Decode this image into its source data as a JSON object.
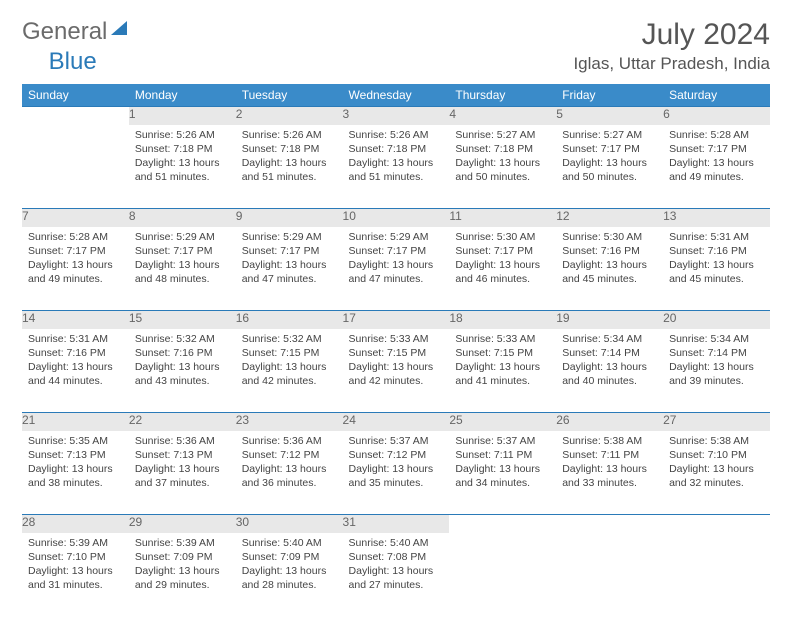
{
  "brand": {
    "part1": "General",
    "part2": "Blue"
  },
  "title": "July 2024",
  "location": "Iglas, Uttar Pradesh, India",
  "colors": {
    "header_bg": "#3a8bc9",
    "header_text": "#ffffff",
    "daynum_bg": "#e8e8e8",
    "row_border": "#2a7ab8",
    "body_text": "#444444"
  },
  "weekdays": [
    "Sunday",
    "Monday",
    "Tuesday",
    "Wednesday",
    "Thursday",
    "Friday",
    "Saturday"
  ],
  "weeks": [
    [
      null,
      {
        "n": "1",
        "sr": "5:26 AM",
        "ss": "7:18 PM",
        "dl": "13 hours and 51 minutes."
      },
      {
        "n": "2",
        "sr": "5:26 AM",
        "ss": "7:18 PM",
        "dl": "13 hours and 51 minutes."
      },
      {
        "n": "3",
        "sr": "5:26 AM",
        "ss": "7:18 PM",
        "dl": "13 hours and 51 minutes."
      },
      {
        "n": "4",
        "sr": "5:27 AM",
        "ss": "7:18 PM",
        "dl": "13 hours and 50 minutes."
      },
      {
        "n": "5",
        "sr": "5:27 AM",
        "ss": "7:17 PM",
        "dl": "13 hours and 50 minutes."
      },
      {
        "n": "6",
        "sr": "5:28 AM",
        "ss": "7:17 PM",
        "dl": "13 hours and 49 minutes."
      }
    ],
    [
      {
        "n": "7",
        "sr": "5:28 AM",
        "ss": "7:17 PM",
        "dl": "13 hours and 49 minutes."
      },
      {
        "n": "8",
        "sr": "5:29 AM",
        "ss": "7:17 PM",
        "dl": "13 hours and 48 minutes."
      },
      {
        "n": "9",
        "sr": "5:29 AM",
        "ss": "7:17 PM",
        "dl": "13 hours and 47 minutes."
      },
      {
        "n": "10",
        "sr": "5:29 AM",
        "ss": "7:17 PM",
        "dl": "13 hours and 47 minutes."
      },
      {
        "n": "11",
        "sr": "5:30 AM",
        "ss": "7:17 PM",
        "dl": "13 hours and 46 minutes."
      },
      {
        "n": "12",
        "sr": "5:30 AM",
        "ss": "7:16 PM",
        "dl": "13 hours and 45 minutes."
      },
      {
        "n": "13",
        "sr": "5:31 AM",
        "ss": "7:16 PM",
        "dl": "13 hours and 45 minutes."
      }
    ],
    [
      {
        "n": "14",
        "sr": "5:31 AM",
        "ss": "7:16 PM",
        "dl": "13 hours and 44 minutes."
      },
      {
        "n": "15",
        "sr": "5:32 AM",
        "ss": "7:16 PM",
        "dl": "13 hours and 43 minutes."
      },
      {
        "n": "16",
        "sr": "5:32 AM",
        "ss": "7:15 PM",
        "dl": "13 hours and 42 minutes."
      },
      {
        "n": "17",
        "sr": "5:33 AM",
        "ss": "7:15 PM",
        "dl": "13 hours and 42 minutes."
      },
      {
        "n": "18",
        "sr": "5:33 AM",
        "ss": "7:15 PM",
        "dl": "13 hours and 41 minutes."
      },
      {
        "n": "19",
        "sr": "5:34 AM",
        "ss": "7:14 PM",
        "dl": "13 hours and 40 minutes."
      },
      {
        "n": "20",
        "sr": "5:34 AM",
        "ss": "7:14 PM",
        "dl": "13 hours and 39 minutes."
      }
    ],
    [
      {
        "n": "21",
        "sr": "5:35 AM",
        "ss": "7:13 PM",
        "dl": "13 hours and 38 minutes."
      },
      {
        "n": "22",
        "sr": "5:36 AM",
        "ss": "7:13 PM",
        "dl": "13 hours and 37 minutes."
      },
      {
        "n": "23",
        "sr": "5:36 AM",
        "ss": "7:12 PM",
        "dl": "13 hours and 36 minutes."
      },
      {
        "n": "24",
        "sr": "5:37 AM",
        "ss": "7:12 PM",
        "dl": "13 hours and 35 minutes."
      },
      {
        "n": "25",
        "sr": "5:37 AM",
        "ss": "7:11 PM",
        "dl": "13 hours and 34 minutes."
      },
      {
        "n": "26",
        "sr": "5:38 AM",
        "ss": "7:11 PM",
        "dl": "13 hours and 33 minutes."
      },
      {
        "n": "27",
        "sr": "5:38 AM",
        "ss": "7:10 PM",
        "dl": "13 hours and 32 minutes."
      }
    ],
    [
      {
        "n": "28",
        "sr": "5:39 AM",
        "ss": "7:10 PM",
        "dl": "13 hours and 31 minutes."
      },
      {
        "n": "29",
        "sr": "5:39 AM",
        "ss": "7:09 PM",
        "dl": "13 hours and 29 minutes."
      },
      {
        "n": "30",
        "sr": "5:40 AM",
        "ss": "7:09 PM",
        "dl": "13 hours and 28 minutes."
      },
      {
        "n": "31",
        "sr": "5:40 AM",
        "ss": "7:08 PM",
        "dl": "13 hours and 27 minutes."
      },
      null,
      null,
      null
    ]
  ],
  "labels": {
    "sunrise": "Sunrise:",
    "sunset": "Sunset:",
    "daylight": "Daylight:"
  }
}
